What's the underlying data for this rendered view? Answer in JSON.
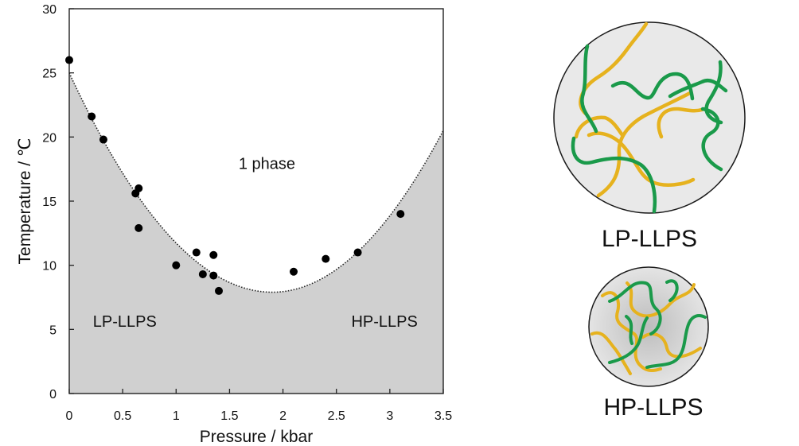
{
  "chart_data": {
    "type": "scatter",
    "xlabel": "Pressure / kbar",
    "ylabel": "Temperature / ℃",
    "xlim": [
      0,
      3.5
    ],
    "ylim": [
      0,
      30
    ],
    "x_ticks": [
      0,
      0.5,
      1,
      1.5,
      2,
      2.5,
      3,
      3.5
    ],
    "x_tick_labels": [
      "0",
      "0.5",
      "1",
      "1.5",
      "2",
      "2.5",
      "3",
      "3.5"
    ],
    "y_ticks": [
      0,
      5,
      10,
      15,
      20,
      25,
      30
    ],
    "y_tick_labels": [
      "0",
      "5",
      "10",
      "15",
      "20",
      "25",
      "30"
    ],
    "grid": false,
    "points": [
      {
        "x": 0.0,
        "y": 26.0
      },
      {
        "x": 0.21,
        "y": 21.6
      },
      {
        "x": 0.32,
        "y": 19.8
      },
      {
        "x": 0.62,
        "y": 15.6
      },
      {
        "x": 0.65,
        "y": 16.0
      },
      {
        "x": 0.65,
        "y": 12.9
      },
      {
        "x": 1.0,
        "y": 10.0
      },
      {
        "x": 1.19,
        "y": 11.0
      },
      {
        "x": 1.25,
        "y": 9.3
      },
      {
        "x": 1.35,
        "y": 10.8
      },
      {
        "x": 1.35,
        "y": 9.2
      },
      {
        "x": 1.4,
        "y": 8.0
      },
      {
        "x": 2.1,
        "y": 9.5
      },
      {
        "x": 2.4,
        "y": 10.5
      },
      {
        "x": 2.7,
        "y": 11.0
      },
      {
        "x": 3.1,
        "y": 14.0
      }
    ],
    "boundary_curve": {
      "style": "dotted",
      "vertex": {
        "x": 1.9,
        "y": 7.9
      },
      "passes_through": [
        {
          "x": 0.0,
          "y": 25.0
        },
        {
          "x": 3.5,
          "y": 20.5
        }
      ],
      "fill_below_color": "#d0d0d0"
    },
    "region_labels": [
      {
        "text": "1 phase",
        "x": 1.85,
        "y": 17.5
      },
      {
        "text": "LP-LLPS",
        "x": 0.52,
        "y": 5.2
      },
      {
        "text": "HP-LLPS",
        "x": 2.95,
        "y": 5.2
      }
    ]
  },
  "illustrations": {
    "lp": {
      "caption": "LP-LLPS"
    },
    "hp": {
      "caption": "HP-LLPS"
    },
    "colors": {
      "chain_a": "#e6b21e",
      "chain_b": "#1a9a4a",
      "droplet_fill": "#e9e9e9",
      "hp_droplet_fill": "#d2d2d2"
    }
  }
}
